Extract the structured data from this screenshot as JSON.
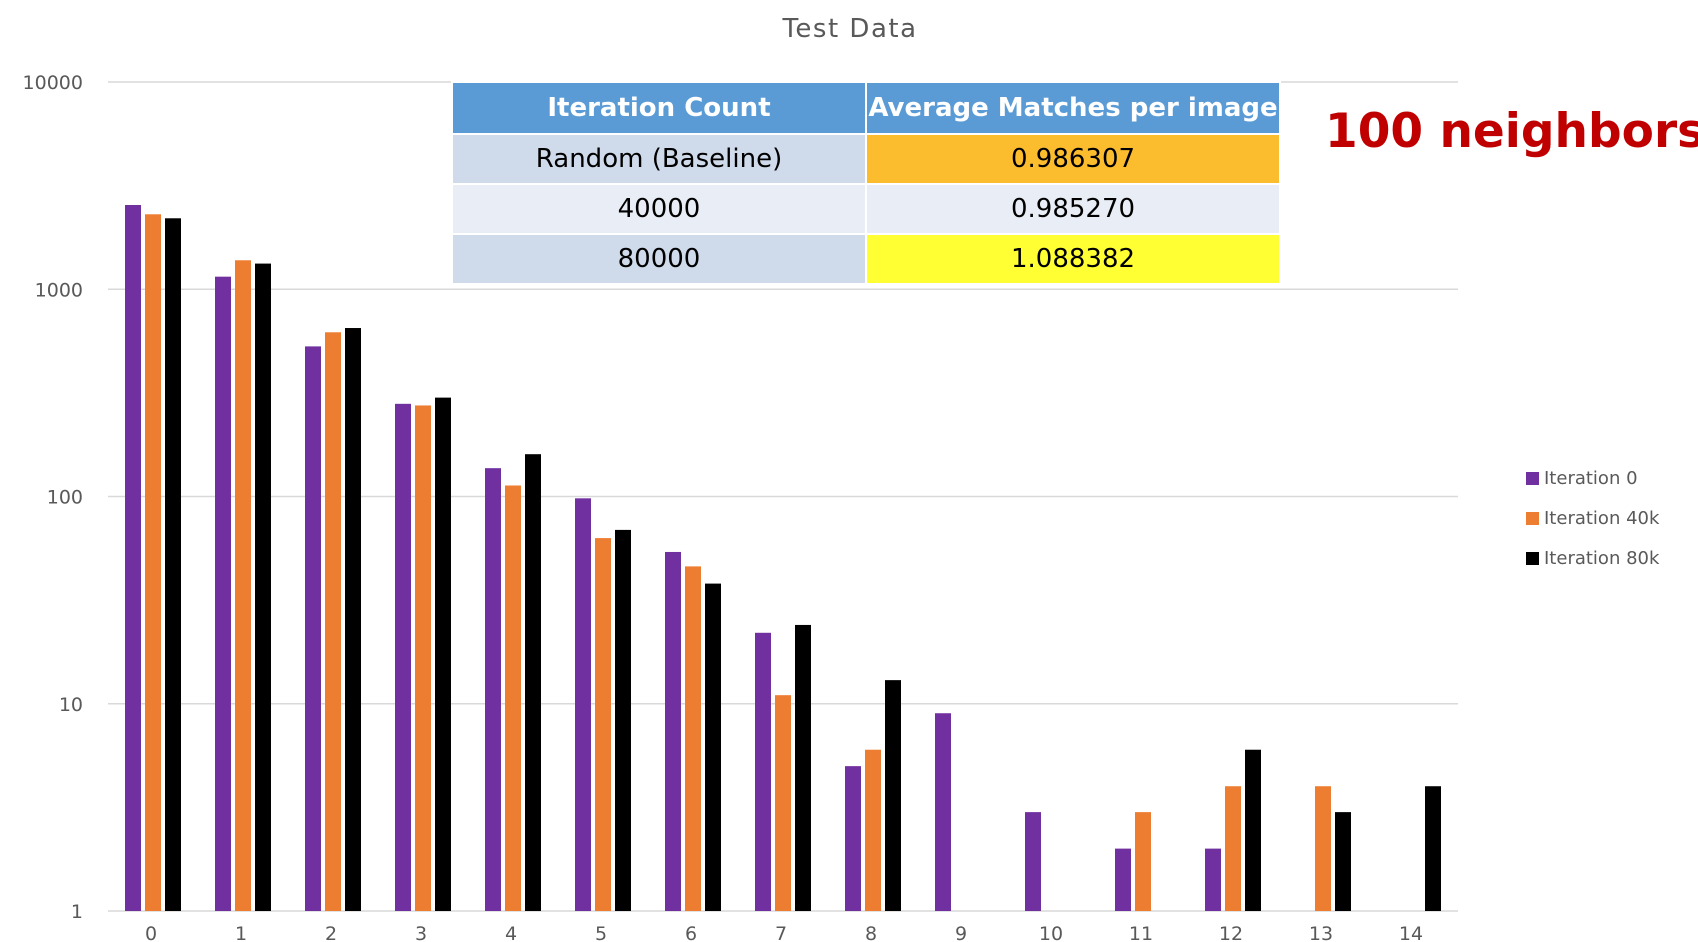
{
  "chart_data": {
    "type": "bar",
    "title": "Test Data",
    "xlabel": "",
    "ylabel": "",
    "yscale": "log",
    "ylim": [
      1,
      10000
    ],
    "yticks": [
      "1",
      "10",
      "100",
      "1000",
      "10000"
    ],
    "grid": true,
    "legend_position": "right",
    "categories": [
      "0",
      "1",
      "2",
      "3",
      "4",
      "5",
      "6",
      "7",
      "8",
      "9",
      "10",
      "11",
      "12",
      "13",
      "14"
    ],
    "series": [
      {
        "name": "Iteration 0",
        "color": "#7030a0",
        "values": [
          2550,
          1150,
          530,
          280,
          137,
          98,
          54,
          22,
          5,
          9,
          3,
          2,
          2,
          null,
          null
        ]
      },
      {
        "name": "Iteration 40k",
        "color": "#ed7d31",
        "values": [
          2300,
          1380,
          620,
          275,
          113,
          63,
          46,
          11,
          6,
          null,
          null,
          3,
          4,
          4,
          null
        ]
      },
      {
        "name": "Iteration 80k",
        "color": "#000000",
        "values": [
          2200,
          1330,
          650,
          300,
          160,
          69,
          38,
          24,
          13,
          null,
          null,
          null,
          6,
          3,
          4
        ]
      }
    ]
  },
  "summary_table": {
    "headers": [
      "Iteration Count",
      "Average Matches per image"
    ],
    "rows": [
      {
        "label": "Random (Baseline)",
        "value": "0.986307",
        "highlight": "#fbbc2e"
      },
      {
        "label": "40000",
        "value": "0.985270",
        "highlight": ""
      },
      {
        "label": "80000",
        "value": "1.088382",
        "highlight": "#ffff33"
      }
    ]
  },
  "note": "100 neighbors"
}
